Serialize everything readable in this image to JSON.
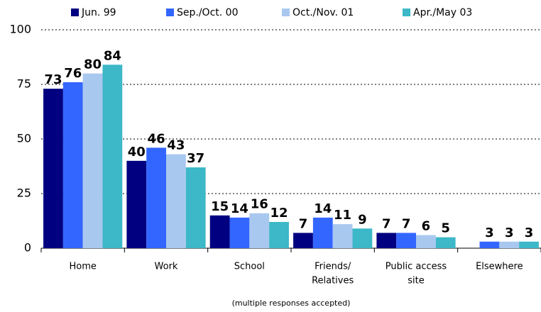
{
  "chart_data": {
    "type": "bar",
    "categories": [
      "Home",
      "Work",
      "School",
      [
        "Friends/",
        "Relatives"
      ],
      [
        "Public access",
        "site"
      ],
      "Elsewhere"
    ],
    "series": [
      {
        "name": "Jun. 99",
        "color": "#000080",
        "values": [
          73,
          40,
          15,
          7,
          7,
          null
        ]
      },
      {
        "name": "Sep./Oct. 00",
        "color": "#3366ff",
        "values": [
          76,
          46,
          14,
          14,
          7,
          3
        ]
      },
      {
        "name": "Oct./Nov. 01",
        "color": "#a9c8f0",
        "values": [
          80,
          43,
          16,
          11,
          6,
          3
        ]
      },
      {
        "name": "Apr./May 03",
        "color": "#3cb8c8",
        "values": [
          84,
          37,
          12,
          9,
          5,
          3
        ]
      }
    ],
    "ylim": [
      0,
      100
    ],
    "yticks": [
      0,
      25,
      50,
      75,
      100
    ],
    "grid": true,
    "legend": "top",
    "note": "(multiple responses accepted)"
  }
}
